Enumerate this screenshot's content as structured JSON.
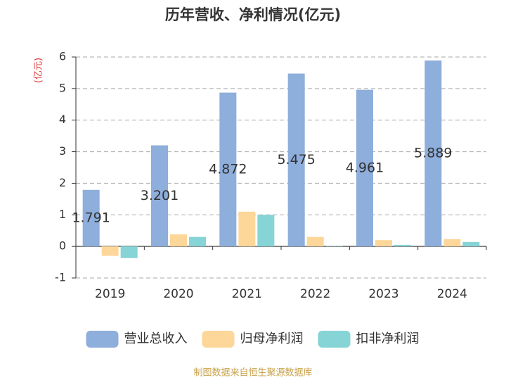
{
  "chart_data": {
    "type": "bar",
    "title": "历年营收、净利情况(亿元)",
    "y_label": "(亿元)",
    "categories": [
      "2019",
      "2020",
      "2021",
      "2022",
      "2023",
      "2024"
    ],
    "series": [
      {
        "name": "营业总收入",
        "color": "#8eaedb",
        "values": [
          1.791,
          3.201,
          4.872,
          5.475,
          4.961,
          5.889
        ],
        "show_labels": true
      },
      {
        "name": "归母净利润",
        "color": "#fdd699",
        "values": [
          -0.3,
          0.38,
          1.1,
          0.3,
          0.2,
          0.23
        ]
      },
      {
        "name": "扣非净利润",
        "color": "#86d4d6",
        "values": [
          -0.37,
          0.3,
          1.0,
          0.01,
          0.05,
          0.14
        ]
      }
    ],
    "ylim": [
      -1,
      6
    ],
    "yticks": [
      -1,
      0,
      1,
      2,
      3,
      4,
      5,
      6
    ],
    "grid": true,
    "legend": "bottom",
    "source": "制图数据来自恒生聚源数据库"
  }
}
